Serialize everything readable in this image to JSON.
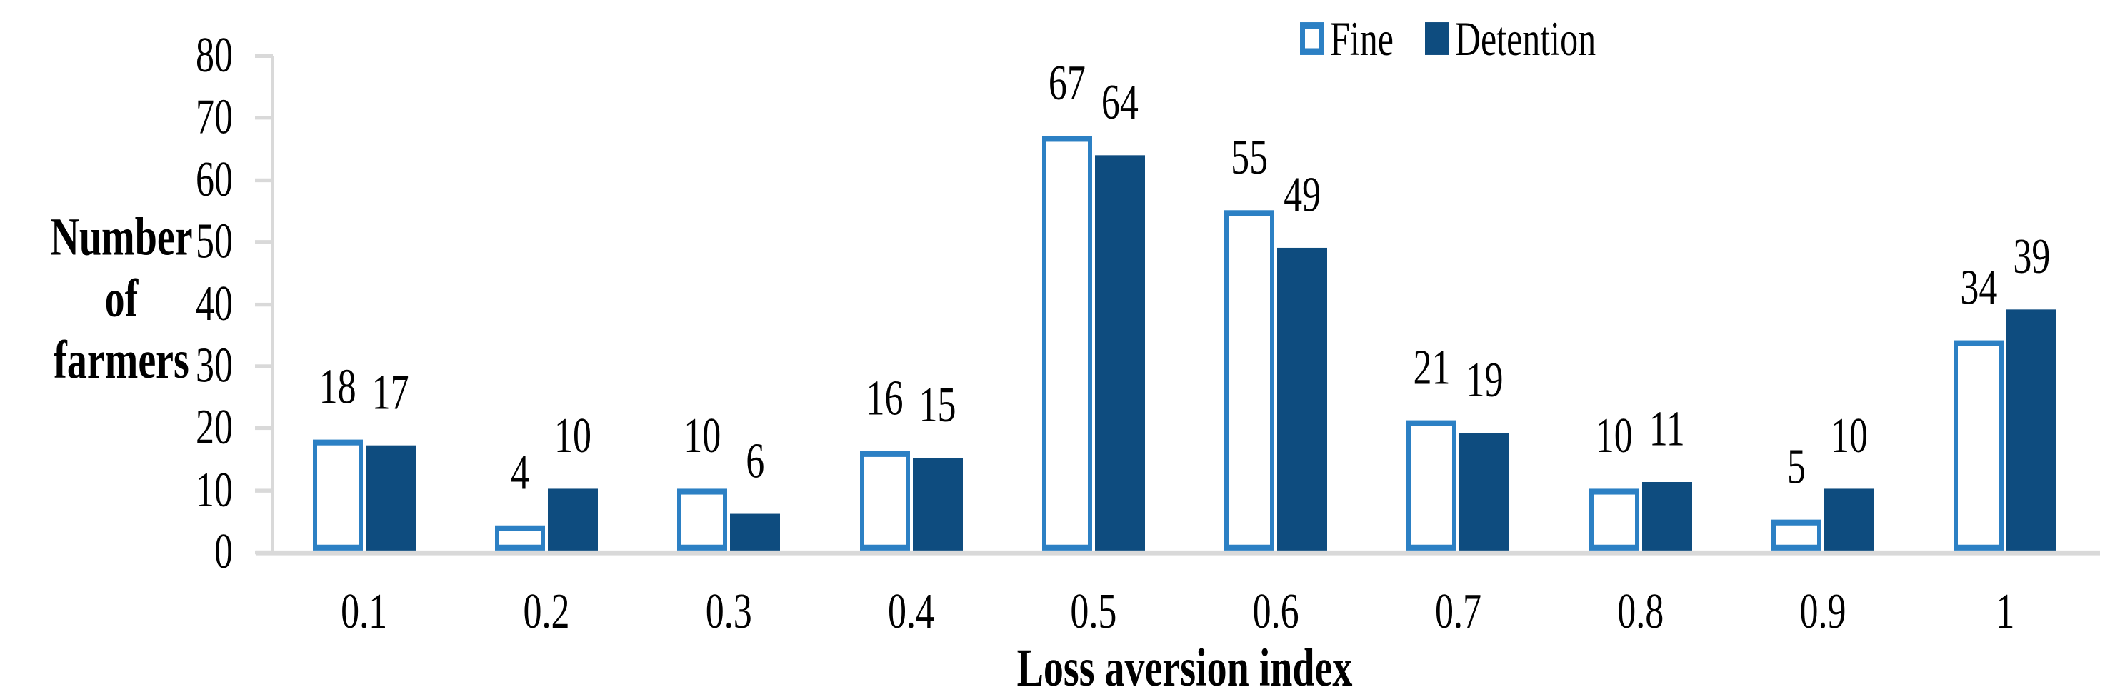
{
  "chart_data": {
    "type": "bar",
    "title": "",
    "xlabel": "Loss aversion index",
    "ylabel": "Number of farmers",
    "ylabel_lines": [
      "Number",
      "of",
      "farmers"
    ],
    "categories": [
      "0.1",
      "0.2",
      "0.3",
      "0.4",
      "0.5",
      "0.6",
      "0.7",
      "0.8",
      "0.9",
      "1"
    ],
    "series": [
      {
        "name": "Fine",
        "style": "outline",
        "values": [
          18,
          4,
          10,
          16,
          67,
          55,
          21,
          10,
          5,
          34
        ]
      },
      {
        "name": "Detention",
        "style": "solid",
        "values": [
          17,
          10,
          6,
          15,
          64,
          49,
          19,
          11,
          10,
          39
        ]
      }
    ],
    "ylim": [
      0,
      80
    ],
    "yticks": [
      0,
      10,
      20,
      30,
      40,
      50,
      60,
      70,
      80
    ],
    "grid": false,
    "data_labels": true,
    "legend_position": "top-right",
    "colors": {
      "fine_outline": "#2C80C4",
      "detention_fill": "#0E4C7F",
      "axis_line": "#D9D9D9",
      "text": "#000000",
      "background": "#FFFFFF"
    }
  }
}
